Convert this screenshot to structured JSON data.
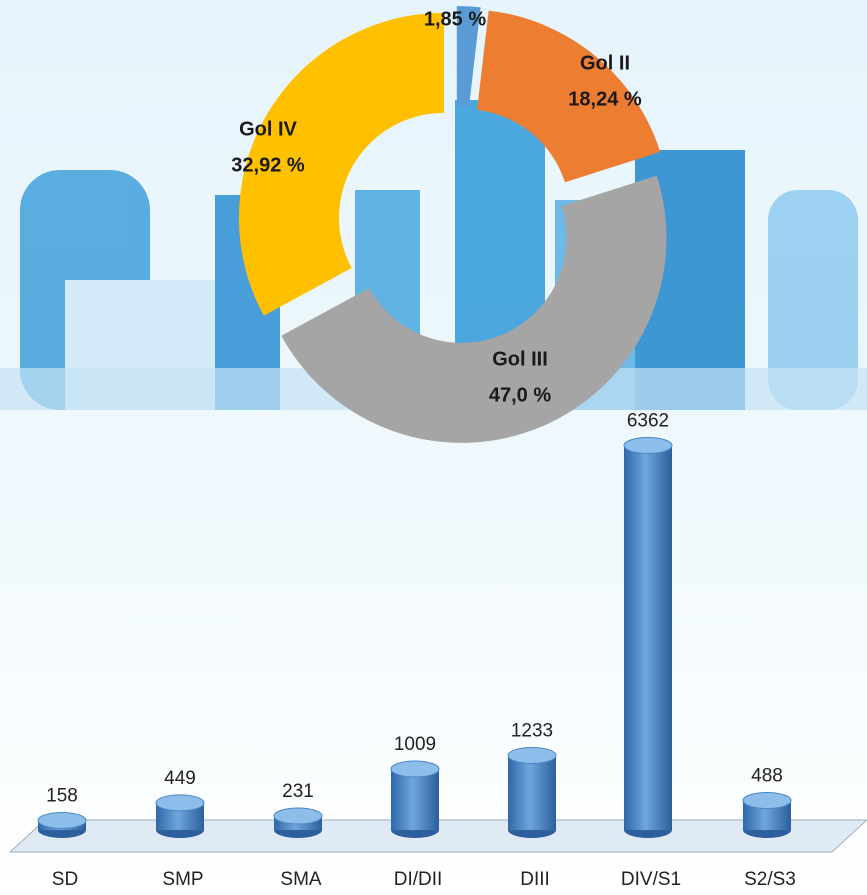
{
  "chart_data": [
    {
      "type": "donut",
      "categories": [
        null,
        "Gol  II",
        "Gol III",
        "Gol IV"
      ],
      "values": [
        1.85,
        18.24,
        47.0,
        32.92
      ],
      "value_labels": [
        "1,85 %",
        "18,24 %",
        "47,0 %",
        "32,92 %"
      ],
      "colors": [
        "#5b9bd5",
        "#ed7d31",
        "#a5a5a5",
        "#ffc000"
      ]
    },
    {
      "type": "bar",
      "categories": [
        "SD",
        "SMP",
        "SMA",
        "DI/DII",
        "DIII",
        "DIV/S1",
        "S2/S3"
      ],
      "values": [
        158,
        449,
        231,
        1009,
        1233,
        6362,
        488
      ],
      "color": "#4a86c8",
      "ylim": [
        0,
        7000
      ]
    }
  ]
}
